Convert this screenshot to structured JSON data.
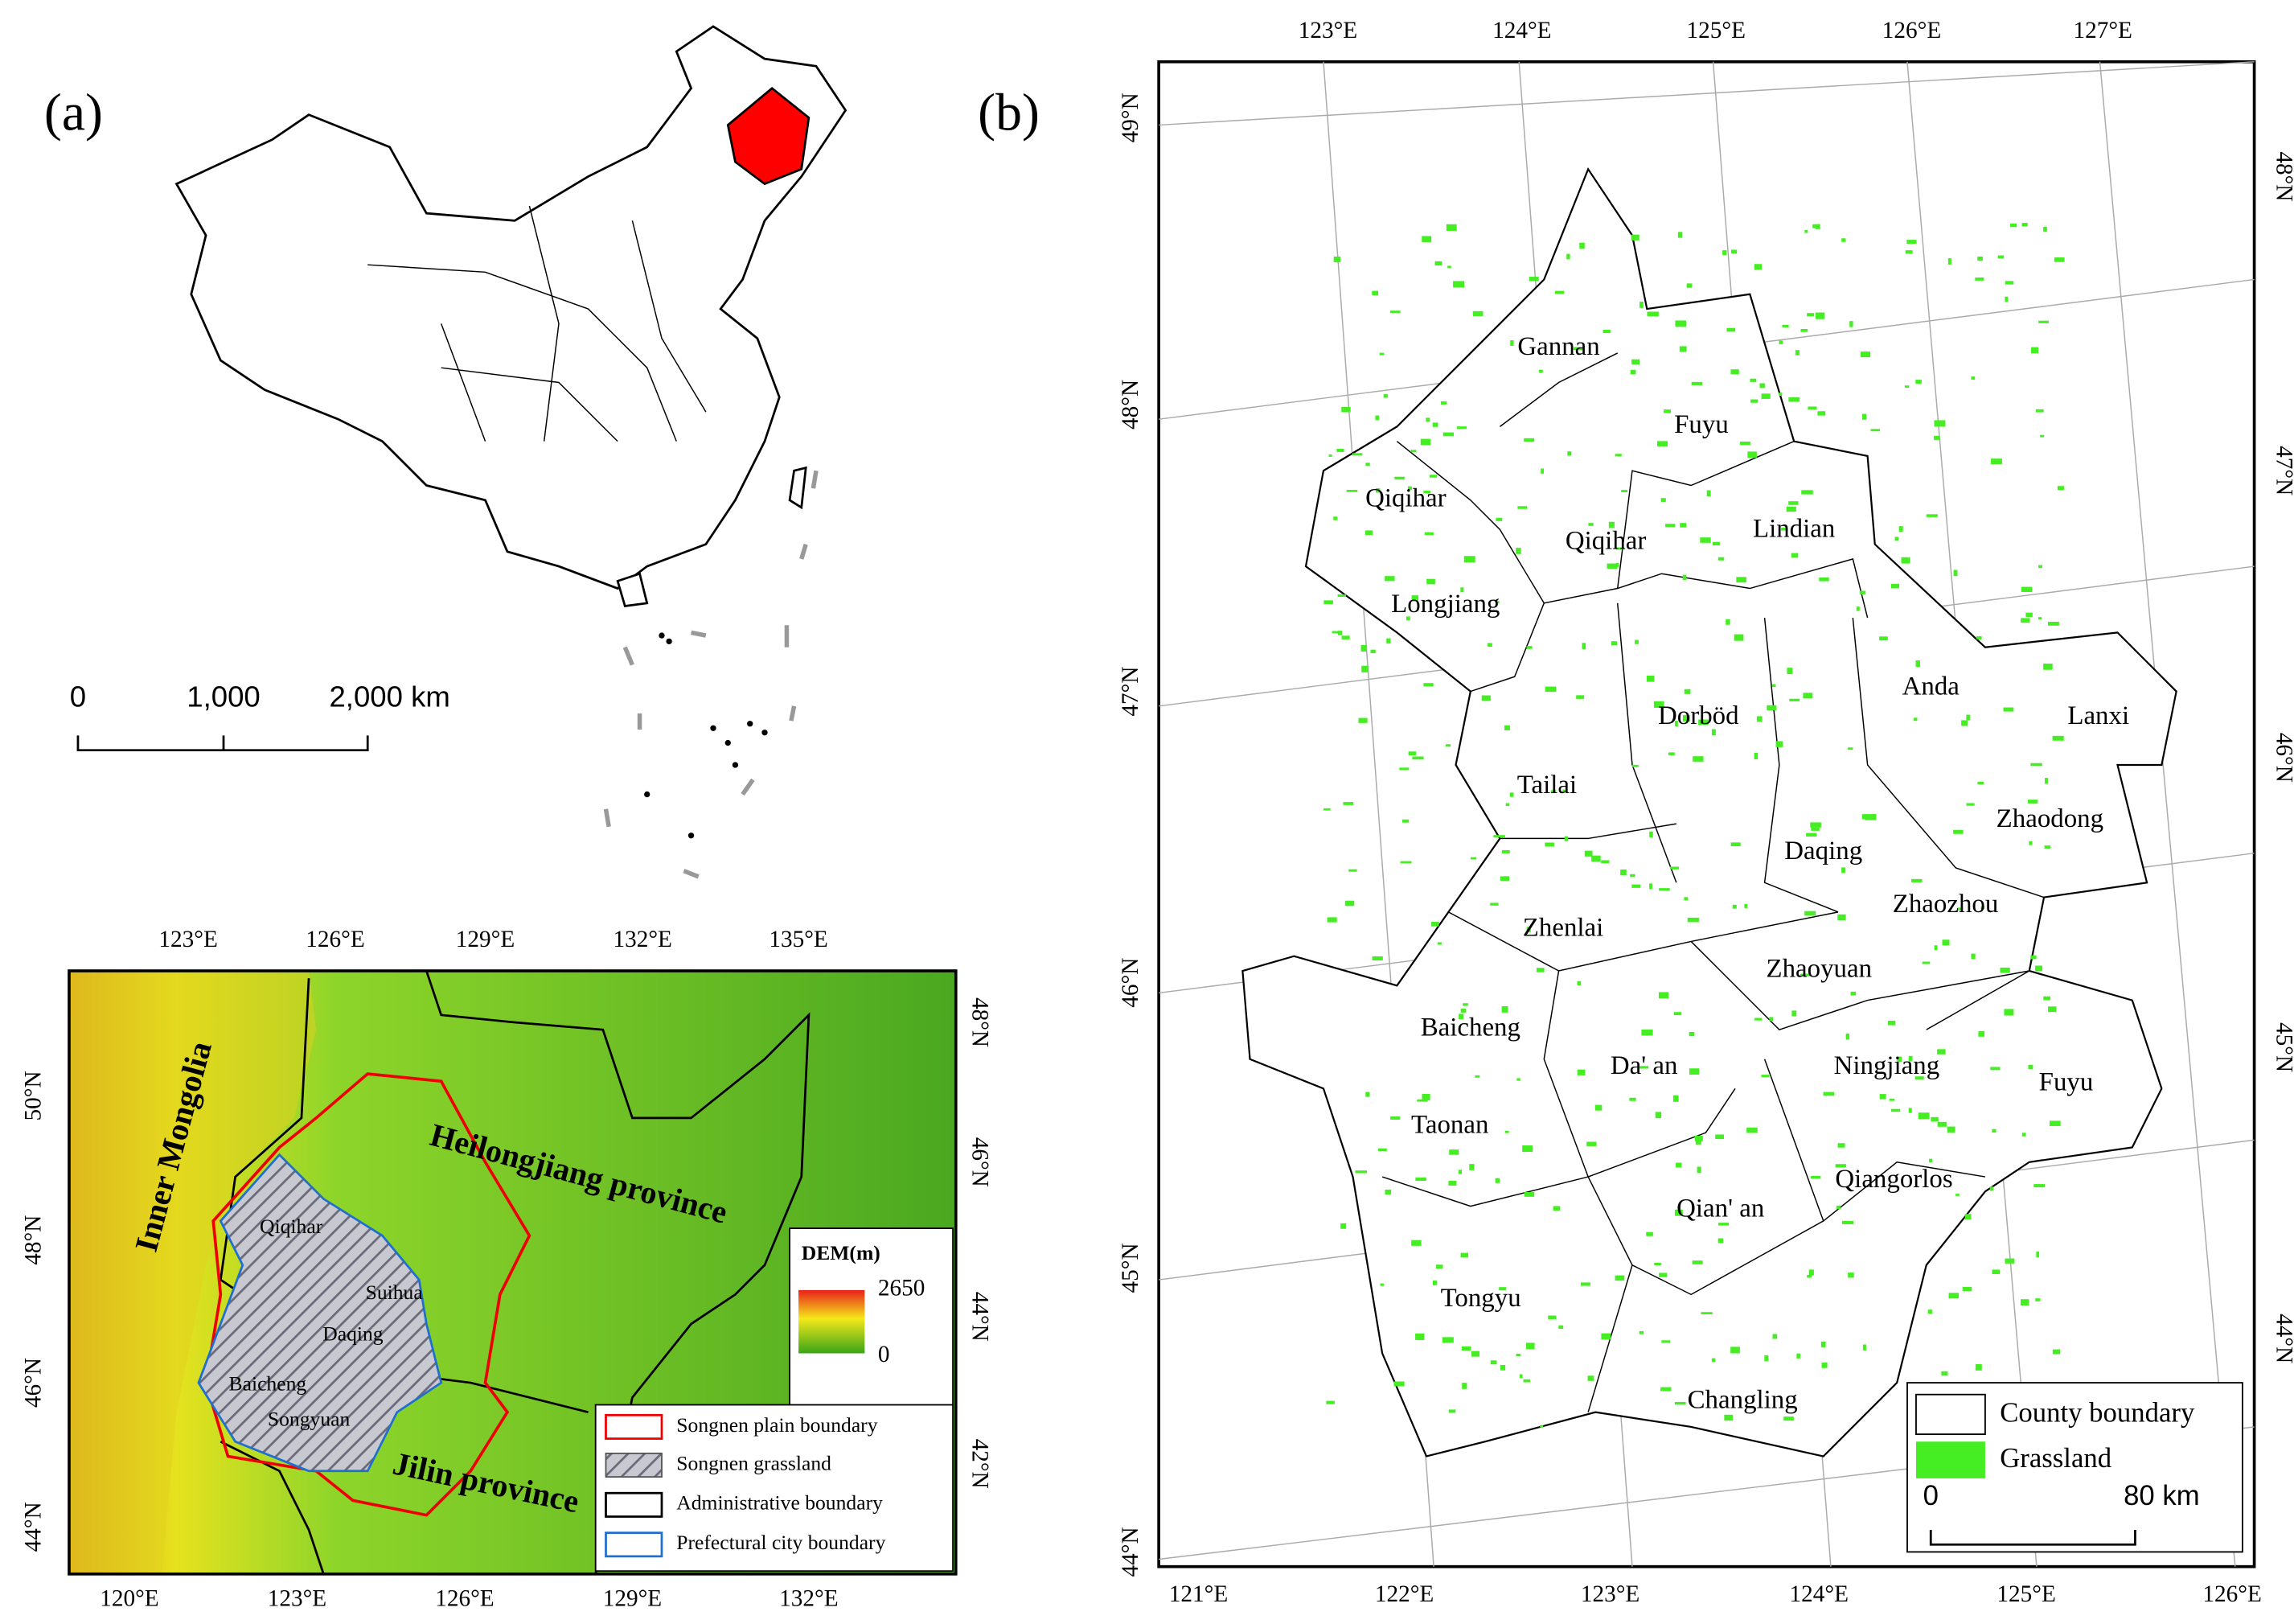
{
  "panel_a": {
    "label": "(a)",
    "scale_bar": [
      "0",
      "1,000",
      "2,000 km"
    ],
    "inset": {
      "top_ticks": [
        "123°E",
        "126°E",
        "129°E",
        "132°E",
        "135°E"
      ],
      "bottom_ticks": [
        "120°E",
        "123°E",
        "126°E",
        "129°E",
        "132°E"
      ],
      "left_ticks": [
        "50°N",
        "48°N",
        "46°N",
        "44°N"
      ],
      "right_ticks": [
        "48°N",
        "46°N",
        "44°N",
        "42°N"
      ],
      "regions": [
        "Inner Mongolia",
        "Heilongjiang province",
        "Jilin province"
      ],
      "cities": [
        "Qiqihar",
        "Suihua",
        "Daqing",
        "Baicheng",
        "Songyuan"
      ],
      "dem": {
        "title": "DEM(m)",
        "max": "2650",
        "min": "0"
      },
      "legend": [
        "Songnen plain boundary",
        "Songnen grassland",
        "Administrative boundary",
        "Prefectural city boundary"
      ]
    }
  },
  "panel_b": {
    "label": "(b)",
    "top_ticks": [
      "123°E",
      "124°E",
      "125°E",
      "126°E",
      "127°E"
    ],
    "bottom_ticks": [
      "121°E",
      "122°E",
      "123°E",
      "124°E",
      "125°E",
      "126°E"
    ],
    "left_ticks": [
      "49°N",
      "48°N",
      "47°N",
      "46°N",
      "45°N",
      "44°N"
    ],
    "right_ticks": [
      "48°N",
      "47°N",
      "46°N",
      "45°N",
      "44°N"
    ],
    "counties": [
      "Gannan",
      "Fuyu",
      "Qiqihar",
      "Qiqihar",
      "Lindian",
      "Longjiang",
      "Anda",
      "Dorböd",
      "Lanxi",
      "Tailai",
      "Zhaodong",
      "Daqing",
      "Zhaozhou",
      "Zhenlai",
      "Zhaoyuan",
      "Baicheng",
      "Da' an",
      "Ningjiang",
      "Fuyu",
      "Taonan",
      "Qiangorlos",
      "Qian' an",
      "Tongyu",
      "Changling"
    ],
    "legend": [
      "County boundary",
      "Grassland"
    ],
    "scale_bar": [
      "0",
      "80 km"
    ]
  }
}
